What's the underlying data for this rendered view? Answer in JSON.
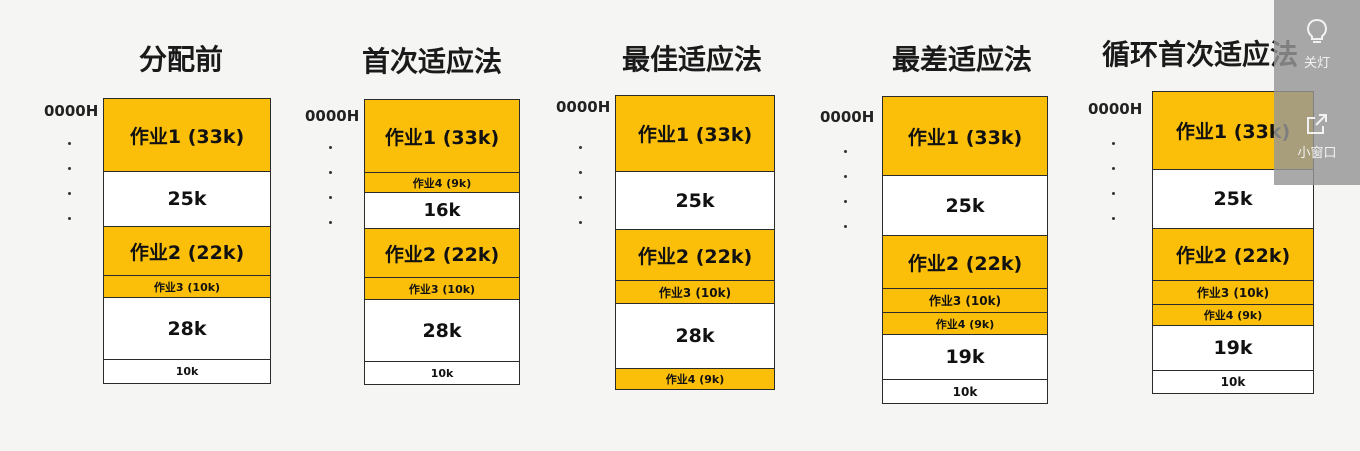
{
  "address_label": "0000H",
  "diagrams": [
    {
      "title": "分配前",
      "blocks": [
        {
          "label": "作业1 (33k)",
          "type": "job",
          "size": 33
        },
        {
          "label": "25k",
          "type": "free",
          "size": 25
        },
        {
          "label": "作业2 (22k)",
          "type": "job",
          "size": 22
        },
        {
          "label": "作业3 (10k)",
          "type": "job",
          "size": 10
        },
        {
          "label": "28k",
          "type": "free",
          "size": 28
        },
        {
          "label": "10k",
          "type": "free",
          "size": 10
        }
      ]
    },
    {
      "title": "首次适应法",
      "blocks": [
        {
          "label": "作业1 (33k)",
          "type": "job",
          "size": 33
        },
        {
          "label": "作业4 (9k)",
          "type": "job",
          "size": 9
        },
        {
          "label": "16k",
          "type": "free",
          "size": 16
        },
        {
          "label": "作业2 (22k)",
          "type": "job",
          "size": 22
        },
        {
          "label": "作业3 (10k)",
          "type": "job",
          "size": 10
        },
        {
          "label": "28k",
          "type": "free",
          "size": 28
        },
        {
          "label": "10k",
          "type": "free",
          "size": 10
        }
      ]
    },
    {
      "title": "最佳适应法",
      "blocks": [
        {
          "label": "作业1 (33k)",
          "type": "job",
          "size": 33
        },
        {
          "label": "25k",
          "type": "free",
          "size": 25
        },
        {
          "label": "作业2 (22k)",
          "type": "job",
          "size": 22
        },
        {
          "label": "作业3 (10k)",
          "type": "job",
          "size": 10
        },
        {
          "label": "28k",
          "type": "free",
          "size": 28
        },
        {
          "label": "作业4 (9k)",
          "type": "job",
          "size": 9
        }
      ]
    },
    {
      "title": "最差适应法",
      "blocks": [
        {
          "label": "作业1 (33k)",
          "type": "job",
          "size": 33
        },
        {
          "label": "25k",
          "type": "free",
          "size": 25
        },
        {
          "label": "作业2 (22k)",
          "type": "job",
          "size": 22
        },
        {
          "label": "作业3 (10k)",
          "type": "job",
          "size": 10
        },
        {
          "label": "作业4 (9k)",
          "type": "job",
          "size": 9
        },
        {
          "label": "19k",
          "type": "free",
          "size": 19
        },
        {
          "label": "10k",
          "type": "free",
          "size": 10
        }
      ]
    },
    {
      "title": "循环首次适应法",
      "blocks": [
        {
          "label": "作业1 (33k)",
          "type": "job",
          "size": 33
        },
        {
          "label": "25k",
          "type": "free",
          "size": 25
        },
        {
          "label": "作业2 (22k)",
          "type": "job",
          "size": 22
        },
        {
          "label": "作业3 (10k)",
          "type": "job",
          "size": 10
        },
        {
          "label": "作业4 (9k)",
          "type": "job",
          "size": 9
        },
        {
          "label": "19k",
          "type": "free",
          "size": 19
        },
        {
          "label": "10k",
          "type": "free",
          "size": 10
        }
      ]
    }
  ],
  "colors": {
    "job": "#fbbf0a",
    "free": "#ffffff",
    "border": "#2b2b2b"
  },
  "overlay": {
    "light_button": {
      "label": "关灯",
      "icon": "lightbulb-icon"
    },
    "mini_window_button": {
      "label": "小窗口",
      "icon": "popout-icon"
    }
  }
}
